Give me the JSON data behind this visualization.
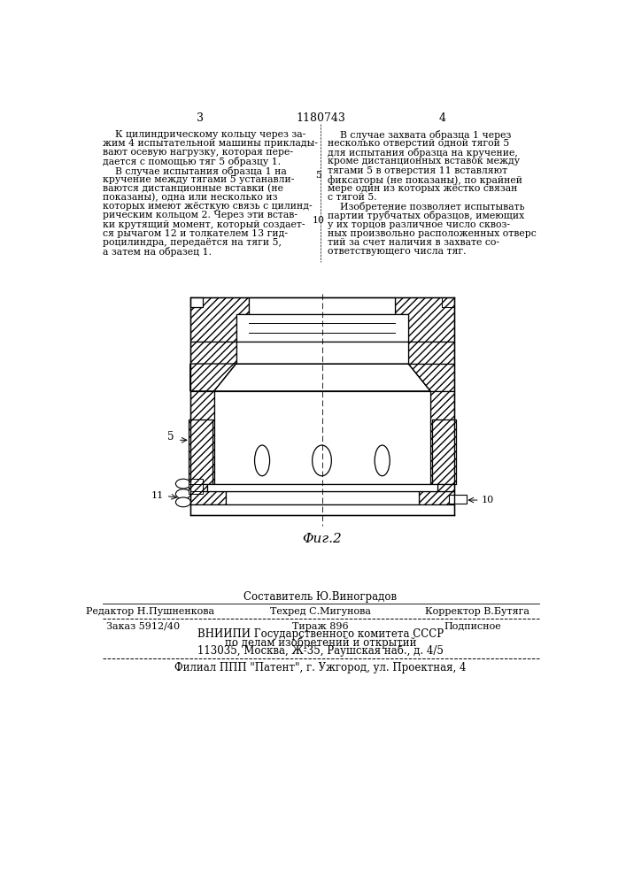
{
  "bg_color": "#ffffff",
  "text_color": "#000000",
  "page_number_left": "3",
  "page_number_center": "1180743",
  "page_number_right": "4",
  "col_left_text": [
    "    К цилиндрическому кольцу через за-",
    "жим 4 испытательной машины приклады-",
    "вают осевую нагрузку, которая пере-",
    "дается с помощью тяг 5 образцу 1.",
    "    В случае испытания образца 1 на",
    "кручение между тягами 5 устанавли-",
    "ваются дистанционные вставки (не",
    "показаны), одна или несколько из",
    "которых имеют жёсткую связь с цилинд-",
    "рическим кольцом 2. Через эти встав-",
    "ки крутящий момент, который создает-",
    "ся рычагом 12 и толкателем 13 гид-",
    "роцилиндра, передаётся на тяги 5,",
    "а затем на образец 1."
  ],
  "col_right_text": [
    "    В случае захвата образца 1 через",
    "несколько отверстий одной тягой 5",
    "для испытания образца на кручение,",
    "кроме дистанционных вставок между",
    "тягами 5 в отверстия 11 вставляют",
    "фиксаторы (не показаны), по крайней",
    "мере один из которых жёстко связан",
    "с тягой 5.",
    "    Изобретение позволяет испытывать",
    "партии трубчатых образцов, имеющих",
    "у их торцов различное число сквоз-",
    "ных произвольно расположенных отверс",
    "тий за счет наличия в захвате со-",
    "ответствующего числа тяг."
  ],
  "line_number_5": "5",
  "line_number_10": "10",
  "fig_label": "Φиг.2",
  "staff_line": "Составитель Ю.Виноградов",
  "editor_label": "Редактор Н.Пушненкова",
  "techred_label": "Техред С.Мигунова",
  "corrector_label": "Корректор В.Бутяга",
  "order_label": "Заказ 5912/40",
  "tiraj_label": "Тираж 896",
  "podp_label": "Подписное",
  "vniip_line1": "ВНИИПИ Государственного комитета СССР",
  "vniip_line2": "по делам изобретений и открытий",
  "vniip_line3": "113035, Москва, Ж-35, Раушская наб., д. 4/5",
  "filial_line": "Филиал ППП \"Патент\", г. Ужгород, ул. Проектная, 4"
}
